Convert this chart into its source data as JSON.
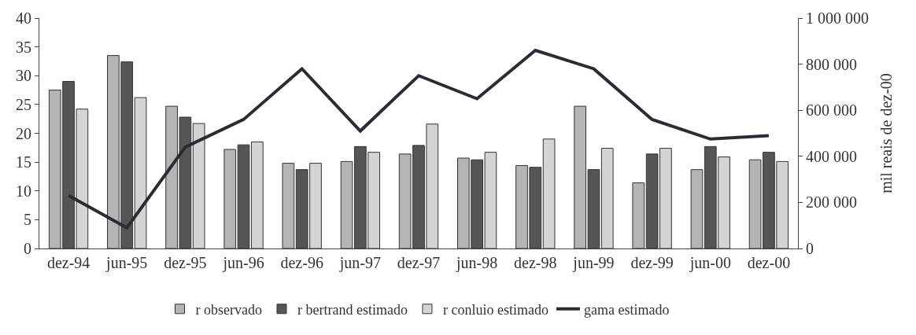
{
  "chart_data": {
    "type": "bar",
    "categories": [
      "dez-94",
      "jun-95",
      "dez-95",
      "jun-96",
      "dez-96",
      "jun-97",
      "dez-97",
      "jun-98",
      "dez-98",
      "jun-99",
      "dez-99",
      "jun-00",
      "dez-00"
    ],
    "series": [
      {
        "name": "r observado",
        "color": "#b4b4b4",
        "values": [
          27.5,
          33.5,
          24.7,
          17.2,
          14.8,
          15.1,
          16.4,
          15.7,
          14.4,
          24.7,
          11.4,
          13.7,
          15.4
        ]
      },
      {
        "name": "r bertrand estimado",
        "color": "#555555",
        "values": [
          29,
          32.4,
          22.8,
          18,
          13.7,
          17.7,
          17.9,
          15.4,
          14.1,
          13.7,
          16.4,
          17.7,
          16.7
        ]
      },
      {
        "name": "r conluio estimado",
        "color": "#d4d4d4",
        "values": [
          24.2,
          26.2,
          21.7,
          18.5,
          14.8,
          16.7,
          21.6,
          16.7,
          19,
          17.4,
          17.4,
          15.9,
          15.1
        ]
      },
      {
        "name": "gama estimado",
        "type": "line",
        "axis": "y2",
        "color": "#2b2b35",
        "values": [
          230000,
          90000,
          440000,
          560000,
          780000,
          510000,
          750000,
          650000,
          860000,
          780000,
          560000,
          475000,
          490000
        ]
      }
    ],
    "ylim": [
      0,
      40
    ],
    "yticks": [
      0,
      5,
      10,
      15,
      20,
      25,
      30,
      35,
      40
    ],
    "y2lim": [
      0,
      1000000
    ],
    "y2ticks": [
      {
        "value": 0,
        "label": "0"
      },
      {
        "value": 200000,
        "label": "200 000"
      },
      {
        "value": 400000,
        "label": "400 000"
      },
      {
        "value": 600000,
        "label": "600 000"
      },
      {
        "value": 800000,
        "label": "800 000"
      },
      {
        "value": 1000000,
        "label": "1 000 000"
      }
    ],
    "y2label": "mil reais de dez-00",
    "legend": "bottom",
    "line_style": "solid",
    "marker": "none"
  }
}
